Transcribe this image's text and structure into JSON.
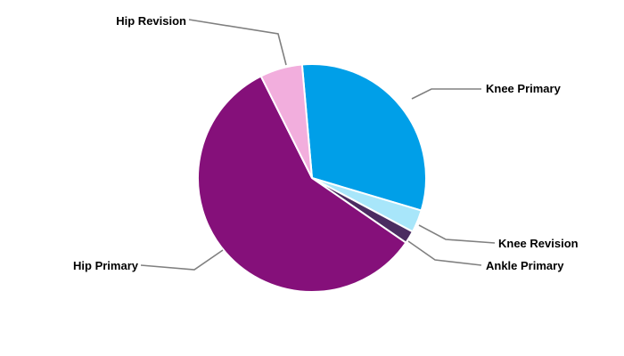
{
  "chart_data": {
    "type": "pie",
    "title": "",
    "start_angle_deg": -95,
    "direction": "clockwise",
    "legend": "none",
    "slices": [
      {
        "label": "Knee Primary",
        "value": 31.0,
        "color": "#009FE8"
      },
      {
        "label": "Knee Revision",
        "value": 3.2,
        "color": "#A8E6FA"
      },
      {
        "label": "Ankle Primary",
        "value": 1.8,
        "color": "#4B2C61"
      },
      {
        "label": "Hip Primary",
        "value": 58.0,
        "color": "#85107A"
      },
      {
        "label": "Hip Revision",
        "value": 6.0,
        "color": "#F2AEDD"
      }
    ]
  }
}
